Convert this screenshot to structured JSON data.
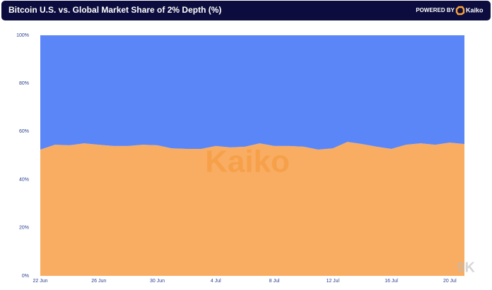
{
  "chart_data": {
    "type": "stacked_area",
    "title": "Bitcoin U.S. vs. Global Market Share of 2% Depth (%)",
    "brand_prefix": "POWERED BY",
    "brand": "Kaiko",
    "watermark": "Kaiko",
    "corner_watermark": "9K",
    "categories": [
      "22 Jun",
      null,
      null,
      null,
      "26 Jun",
      null,
      null,
      null,
      "30 Jun",
      null,
      null,
      null,
      "4 Jul",
      null,
      null,
      null,
      "8 Jul",
      null,
      null,
      null,
      "12 Jul",
      null,
      null,
      null,
      "16 Jul",
      null,
      null,
      null,
      "20 Jul",
      null
    ],
    "series": [
      {
        "color": "#f9ad62",
        "values": [
          52.5,
          54.5,
          54.3,
          55.1,
          54.5,
          54,
          54,
          54.5,
          54.3,
          53,
          52.8,
          52.8,
          54,
          53.4,
          53.7,
          55.1,
          54,
          54,
          53.7,
          52.5,
          53,
          55.7,
          54.8,
          53.7,
          52.8,
          54.5,
          55.1,
          54.5,
          55.4,
          54.8
        ]
      },
      {
        "color": "#5b86f7",
        "values": [
          47.5,
          45.5,
          45.7,
          44.9,
          45.5,
          46,
          46,
          45.5,
          45.7,
          47,
          47.2,
          47.2,
          46,
          46.6,
          46.3,
          44.9,
          46,
          46,
          46.3,
          47.5,
          47,
          44.3,
          45.2,
          46.3,
          47.2,
          45.5,
          44.9,
          45.5,
          44.6,
          45.2
        ]
      }
    ],
    "ylim": [
      0,
      100
    ],
    "yticks": [
      {
        "value": 0,
        "label": "0%"
      },
      {
        "value": 20,
        "label": "20%"
      },
      {
        "value": 40,
        "label": "40%"
      },
      {
        "value": 60,
        "label": "60%"
      },
      {
        "value": 80,
        "label": "80%"
      },
      {
        "value": 100,
        "label": "100%"
      }
    ]
  }
}
